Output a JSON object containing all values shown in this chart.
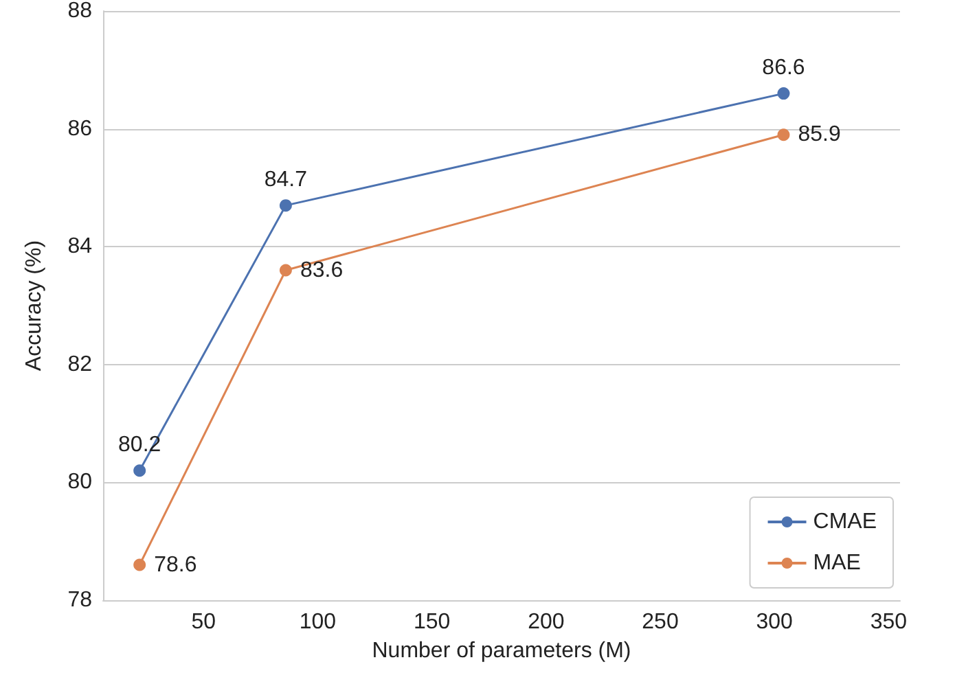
{
  "chart_data": {
    "type": "line",
    "xlabel": "Number of parameters (M)",
    "ylabel": "Accuracy (%)",
    "x": [
      22,
      86,
      304
    ],
    "series": [
      {
        "name": "CMAE",
        "color": "#4c72b0",
        "values": [
          80.2,
          84.7,
          86.6
        ]
      },
      {
        "name": "MAE",
        "color": "#dd8452",
        "values": [
          78.6,
          83.6,
          85.9
        ]
      }
    ],
    "xlim": [
      6,
      355
    ],
    "xticks": [
      50,
      100,
      150,
      200,
      250,
      300,
      350
    ],
    "ylim": [
      78,
      88
    ],
    "yticks": [
      78,
      80,
      82,
      84,
      86,
      88
    ],
    "grid": "y",
    "legend": "bottom right",
    "marker": "circle",
    "line_style": "solid",
    "data_labels": true
  }
}
